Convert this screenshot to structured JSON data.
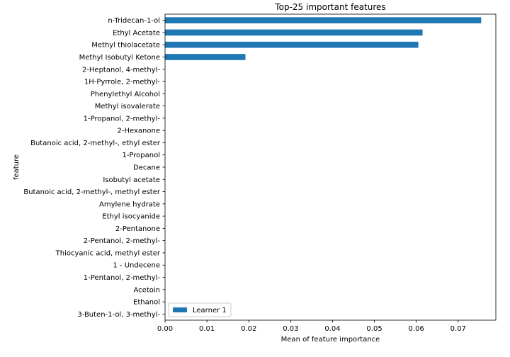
{
  "chart_data": {
    "type": "bar",
    "orientation": "horizontal",
    "title": "Top-25 important features",
    "xlabel": "Mean of feature importance",
    "ylabel": "feature",
    "xlim": [
      0,
      0.079
    ],
    "xticks": [
      0.0,
      0.01,
      0.02,
      0.03,
      0.04,
      0.05,
      0.06,
      0.07
    ],
    "xtick_labels": [
      "0.00",
      "0.01",
      "0.02",
      "0.03",
      "0.04",
      "0.05",
      "0.06",
      "0.07"
    ],
    "grid": false,
    "legend_position": "lower-left",
    "bar_color": "#1f77b4",
    "categories": [
      "n-Tridecan-1-ol",
      "Ethyl Acetate",
      "Methyl thiolacetate",
      "Methyl Isobutyl Ketone",
      "2-Heptanol, 4-methyl-",
      "1H-Pyrrole, 2-methyl-",
      "Phenylethyl Alcohol",
      "Methyl isovalerate",
      "1-Propanol, 2-methyl-",
      "2-Hexanone",
      "Butanoic acid, 2-methyl-, ethyl ester",
      "1-Propanol",
      "Decane",
      "Isobutyl acetate",
      "Butanoic acid, 2-methyl-, methyl ester",
      "Amylene hydrate",
      "Ethyl isocyanide",
      "2-Pentanone",
      "2-Pentanol, 2-methyl-",
      "Thiocyanic acid, methyl ester",
      "1 - Undecene",
      "1-Pentanol, 2-methyl-",
      "Acetoin",
      "Ethanol",
      "3-Buten-1-ol, 3-methyl-"
    ],
    "series": [
      {
        "name": "Learner 1",
        "values": [
          0.0755,
          0.0615,
          0.0605,
          0.0192,
          0,
          0,
          0,
          0,
          0,
          0,
          0,
          0,
          0,
          0,
          0,
          0,
          0,
          0,
          0,
          0,
          0,
          0,
          0,
          0,
          0
        ]
      }
    ]
  }
}
